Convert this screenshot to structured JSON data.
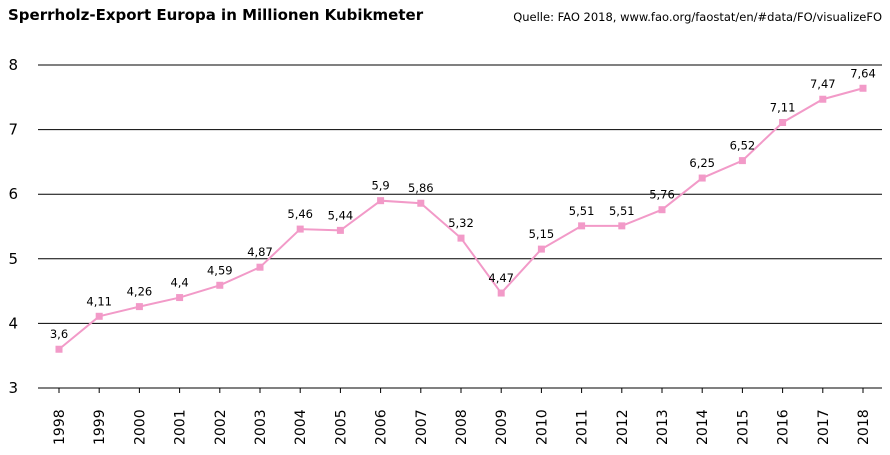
{
  "header": {
    "title": "Sperrholz-Export Europa in Millionen Kubikmeter",
    "source": "Quelle: FAO 2018, www.fao.org/faostat/en/#data/FO/visualizeFO"
  },
  "colors": {
    "line": "#f29ac8",
    "marker": "#f29ac8",
    "grid": "#000000"
  },
  "chart_data": {
    "type": "line",
    "title": "Sperrholz-Export Europa in Millionen Kubikmeter",
    "xlabel": "",
    "ylabel": "",
    "ylim": [
      3,
      8
    ],
    "yticks": [
      3,
      4,
      5,
      6,
      7,
      8
    ],
    "grid": true,
    "categories": [
      "1998",
      "1999",
      "2000",
      "2001",
      "2002",
      "2003",
      "2004",
      "2005",
      "2006",
      "2007",
      "2008",
      "2009",
      "2010",
      "2011",
      "2012",
      "2013",
      "2014",
      "2015",
      "2016",
      "2017",
      "2018"
    ],
    "series": [
      {
        "values": [
          3.6,
          4.11,
          4.26,
          4.4,
          4.59,
          4.87,
          5.46,
          5.44,
          5.9,
          5.86,
          5.32,
          4.47,
          5.15,
          5.51,
          5.51,
          5.76,
          6.25,
          6.52,
          7.11,
          7.47,
          7.64
        ],
        "labels": [
          "3,6",
          "4,11",
          "4,26",
          "4,4",
          "4,59",
          "4,87",
          "5,46",
          "5,44",
          "5,9",
          "5,86",
          "5,32",
          "4,47",
          "5,15",
          "5,51",
          "5,51",
          "5,76",
          "6,25",
          "6,52",
          "7,11",
          "7,47",
          "7,64"
        ]
      }
    ]
  }
}
